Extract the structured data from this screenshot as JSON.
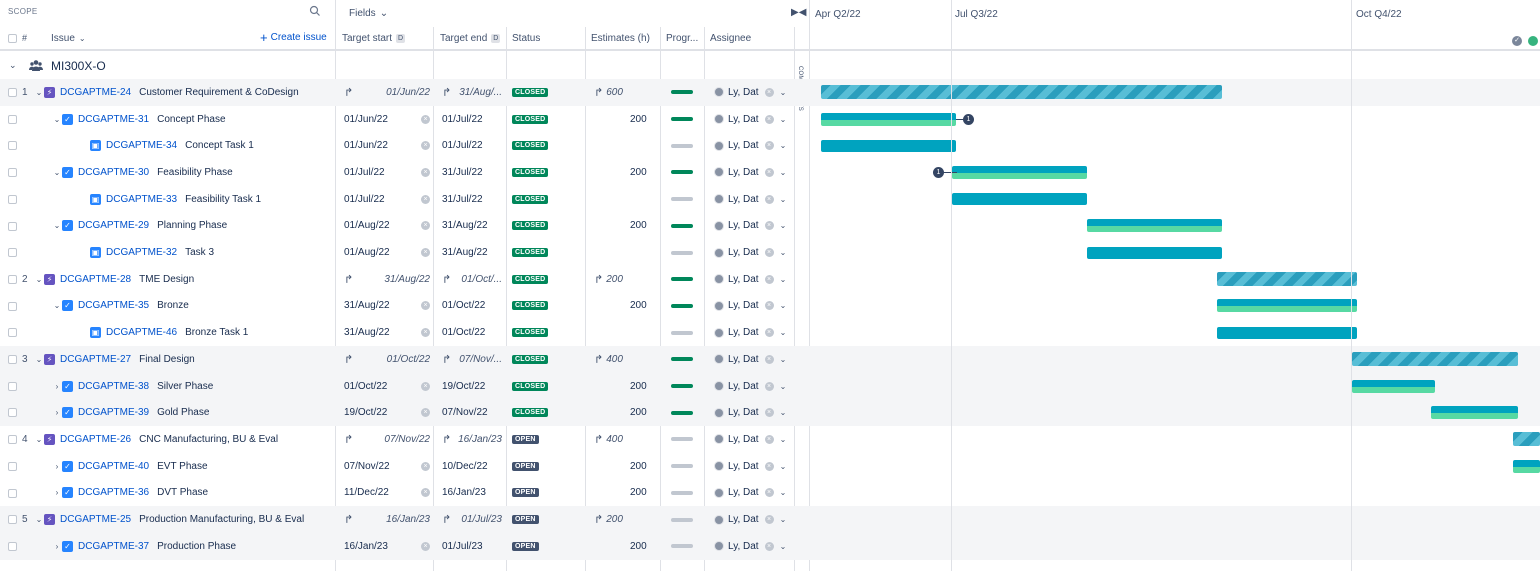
{
  "header": {
    "scope_label": "SCOPE",
    "fields_label": "Fields",
    "hash": "#",
    "issue_label": "Issue",
    "create_issue": "Create issue",
    "cols": {
      "target_start": "Target start",
      "target_end": "Target end",
      "status": "Status",
      "estimates": "Estimates (h)",
      "progress": "Progr...",
      "assignee": "Assignee"
    },
    "date_badge": "D",
    "dep_legend": "✓"
  },
  "timeline": {
    "quarters": [
      "Apr Q2/22",
      "Jul Q3/22",
      "Oct Q4/22"
    ]
  },
  "components_label": "COMPONENTS",
  "project": {
    "name": "MI300X-O"
  },
  "rows": [
    {
      "rank": "1",
      "level": 0,
      "exp": "v",
      "type": "epic",
      "key": "DCGAPTME-24",
      "summary": "Customer Requirement & CoDesign",
      "start": "01/Jun/22",
      "end": "31/Aug/...",
      "inherited": true,
      "status": "CLOSED",
      "est": "600",
      "prog": "done",
      "assignee": "Ly, Dat",
      "shade": true
    },
    {
      "rank": "",
      "level": 1,
      "exp": "v",
      "type": "story",
      "key": "DCGAPTME-31",
      "summary": "Concept Phase",
      "start": "01/Jun/22",
      "end": "01/Jul/22",
      "inherited": false,
      "status": "CLOSED",
      "est": "200",
      "prog": "done",
      "assignee": "Ly, Dat",
      "shade": false
    },
    {
      "rank": "",
      "level": 2,
      "exp": "",
      "type": "sub",
      "key": "DCGAPTME-34",
      "summary": "Concept Task 1",
      "start": "01/Jun/22",
      "end": "01/Jul/22",
      "inherited": false,
      "status": "CLOSED",
      "est": "",
      "prog": "none",
      "assignee": "Ly, Dat",
      "shade": false
    },
    {
      "rank": "",
      "level": 1,
      "exp": "v",
      "type": "story",
      "key": "DCGAPTME-30",
      "summary": "Feasibility Phase",
      "start": "01/Jul/22",
      "end": "31/Jul/22",
      "inherited": false,
      "status": "CLOSED",
      "est": "200",
      "prog": "done",
      "assignee": "Ly, Dat",
      "shade": false
    },
    {
      "rank": "",
      "level": 2,
      "exp": "",
      "type": "sub",
      "key": "DCGAPTME-33",
      "summary": "Feasibility Task 1",
      "start": "01/Jul/22",
      "end": "31/Jul/22",
      "inherited": false,
      "status": "CLOSED",
      "est": "",
      "prog": "none",
      "assignee": "Ly, Dat",
      "shade": false
    },
    {
      "rank": "",
      "level": 1,
      "exp": "v",
      "type": "story",
      "key": "DCGAPTME-29",
      "summary": "Planning Phase",
      "start": "01/Aug/22",
      "end": "31/Aug/22",
      "inherited": false,
      "status": "CLOSED",
      "est": "200",
      "prog": "done",
      "assignee": "Ly, Dat",
      "shade": false
    },
    {
      "rank": "",
      "level": 2,
      "exp": "",
      "type": "sub",
      "key": "DCGAPTME-32",
      "summary": "Task 3",
      "start": "01/Aug/22",
      "end": "31/Aug/22",
      "inherited": false,
      "status": "CLOSED",
      "est": "",
      "prog": "none",
      "assignee": "Ly, Dat",
      "shade": false
    },
    {
      "rank": "2",
      "level": 0,
      "exp": "v",
      "type": "epic",
      "key": "DCGAPTME-28",
      "summary": "TME Design",
      "start": "31/Aug/22",
      "end": "01/Oct/...",
      "inherited": true,
      "status": "CLOSED",
      "est": "200",
      "prog": "done",
      "assignee": "Ly, Dat",
      "shade": false
    },
    {
      "rank": "",
      "level": 1,
      "exp": "v",
      "type": "story",
      "key": "DCGAPTME-35",
      "summary": "Bronze",
      "start": "31/Aug/22",
      "end": "01/Oct/22",
      "inherited": false,
      "status": "CLOSED",
      "est": "200",
      "prog": "done",
      "assignee": "Ly, Dat",
      "shade": false
    },
    {
      "rank": "",
      "level": 2,
      "exp": "",
      "type": "sub",
      "key": "DCGAPTME-46",
      "summary": "Bronze Task 1",
      "start": "31/Aug/22",
      "end": "01/Oct/22",
      "inherited": false,
      "status": "CLOSED",
      "est": "",
      "prog": "none",
      "assignee": "Ly, Dat",
      "shade": false
    },
    {
      "rank": "3",
      "level": 0,
      "exp": "v",
      "type": "epic",
      "key": "DCGAPTME-27",
      "summary": "Final Design",
      "start": "01/Oct/22",
      "end": "07/Nov/...",
      "inherited": true,
      "status": "CLOSED",
      "est": "400",
      "prog": "done",
      "assignee": "Ly, Dat",
      "shade": true
    },
    {
      "rank": "",
      "level": 1,
      "exp": ">",
      "type": "story",
      "key": "DCGAPTME-38",
      "summary": "Silver Phase",
      "start": "01/Oct/22",
      "end": "19/Oct/22",
      "inherited": false,
      "status": "CLOSED",
      "est": "200",
      "prog": "done",
      "assignee": "Ly, Dat",
      "shade": true
    },
    {
      "rank": "",
      "level": 1,
      "exp": ">",
      "type": "story",
      "key": "DCGAPTME-39",
      "summary": "Gold Phase",
      "start": "19/Oct/22",
      "end": "07/Nov/22",
      "inherited": false,
      "status": "CLOSED",
      "est": "200",
      "prog": "done",
      "assignee": "Ly, Dat",
      "shade": true
    },
    {
      "rank": "4",
      "level": 0,
      "exp": "v",
      "type": "epic",
      "key": "DCGAPTME-26",
      "summary": "CNC Manufacturing, BU & Eval",
      "start": "07/Nov/22",
      "end": "16/Jan/23",
      "inherited": true,
      "status": "OPEN",
      "est": "400",
      "prog": "none",
      "assignee": "Ly, Dat",
      "shade": false
    },
    {
      "rank": "",
      "level": 1,
      "exp": ">",
      "type": "story",
      "key": "DCGAPTME-40",
      "summary": "EVT Phase",
      "start": "07/Nov/22",
      "end": "10/Dec/22",
      "inherited": false,
      "status": "OPEN",
      "est": "200",
      "prog": "none",
      "assignee": "Ly, Dat",
      "shade": false
    },
    {
      "rank": "",
      "level": 1,
      "exp": ">",
      "type": "story",
      "key": "DCGAPTME-36",
      "summary": "DVT Phase",
      "start": "11/Dec/22",
      "end": "16/Jan/23",
      "inherited": false,
      "status": "OPEN",
      "est": "200",
      "prog": "none",
      "assignee": "Ly, Dat",
      "shade": false
    },
    {
      "rank": "5",
      "level": 0,
      "exp": "v",
      "type": "epic",
      "key": "DCGAPTME-25",
      "summary": "Production Manufacturing, BU & Eval",
      "start": "16/Jan/23",
      "end": "01/Jul/23",
      "inherited": true,
      "status": "OPEN",
      "est": "200",
      "prog": "none",
      "assignee": "Ly, Dat",
      "shade": true
    },
    {
      "rank": "",
      "level": 1,
      "exp": ">",
      "type": "story",
      "key": "DCGAPTME-37",
      "summary": "Production Phase",
      "start": "16/Jan/23",
      "end": "01/Jul/23",
      "inherited": false,
      "status": "OPEN",
      "est": "200",
      "prog": "none",
      "assignee": "Ly, Dat",
      "shade": true
    }
  ],
  "dependency_badge": "1",
  "colors": {
    "epic": "#6554c0",
    "story": "#2684ff",
    "closed": "#00875a",
    "open": "#42526e",
    "bar": "#00a3bf",
    "bar_green": "#57d9a3"
  }
}
